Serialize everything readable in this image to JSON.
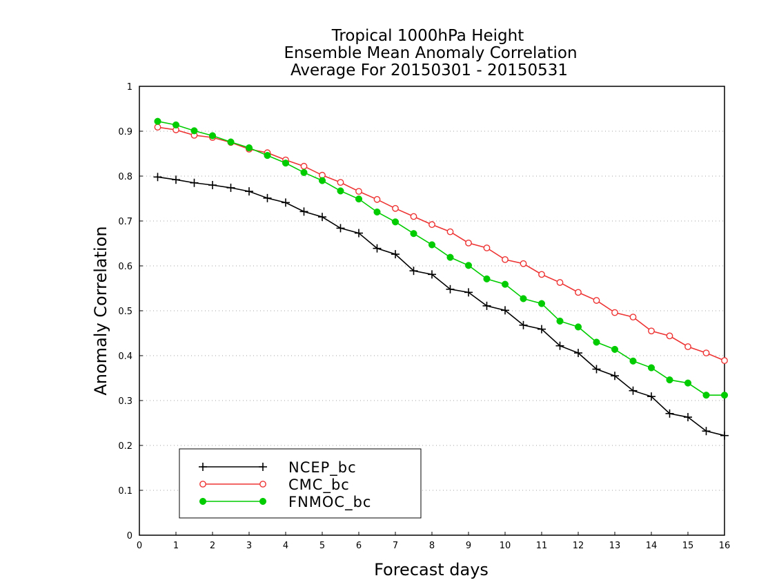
{
  "chart_data": {
    "type": "line",
    "title_lines": [
      "Tropical 1000hPa Height",
      "Ensemble Mean Anomaly Correlation",
      "Average For 20150301 - 20150531"
    ],
    "xlabel": "Forecast days",
    "ylabel": "Anomaly Correlation",
    "xlim": [
      0,
      16
    ],
    "ylim": [
      0,
      1
    ],
    "xticks": [
      0,
      1,
      2,
      3,
      4,
      5,
      6,
      7,
      8,
      9,
      10,
      11,
      12,
      13,
      14,
      15,
      16
    ],
    "xtick_labels": [
      "0",
      "1",
      "2",
      "3",
      "4",
      "5",
      "6",
      "7",
      "8",
      "9",
      "10",
      "11",
      "12",
      "13",
      "14",
      "15",
      "16"
    ],
    "yticks": [
      0,
      0.1,
      0.2,
      0.3,
      0.4,
      0.5,
      0.6,
      0.7,
      0.8,
      0.9,
      1
    ],
    "ytick_labels": [
      "0",
      "0.1",
      "0.2",
      "0.3",
      "0.4",
      "0.5",
      "0.6",
      "0.7",
      "0.8",
      "0.9",
      "1"
    ],
    "grid": "horizontal-dotted",
    "legend_position": "bottom-left",
    "x": [
      0.5,
      1,
      1.5,
      2,
      2.5,
      3,
      3.5,
      4,
      4.5,
      5,
      5.5,
      6,
      6.5,
      7,
      7.5,
      8,
      8.5,
      9,
      9.5,
      10,
      10.5,
      11,
      11.5,
      12,
      12.5,
      13,
      13.5,
      14,
      14.5,
      15,
      15.5,
      16
    ],
    "series": [
      {
        "name": "NCEP_bc",
        "color": "#000000",
        "marker": "plus",
        "values": [
          0.798,
          0.792,
          0.785,
          0.78,
          0.774,
          0.766,
          0.751,
          0.741,
          0.721,
          0.709,
          0.684,
          0.673,
          0.639,
          0.626,
          0.589,
          0.581,
          0.548,
          0.541,
          0.511,
          0.501,
          0.468,
          0.459,
          0.422,
          0.406,
          0.37,
          0.355,
          0.322,
          0.309,
          0.271,
          0.263,
          0.232,
          0.222
        ]
      },
      {
        "name": "CMC_bc",
        "color": "#ee3333",
        "marker": "open-circle",
        "values": [
          0.909,
          0.903,
          0.891,
          0.886,
          0.875,
          0.86,
          0.852,
          0.836,
          0.822,
          0.802,
          0.786,
          0.766,
          0.748,
          0.728,
          0.71,
          0.692,
          0.676,
          0.651,
          0.64,
          0.614,
          0.605,
          0.581,
          0.563,
          0.541,
          0.523,
          0.496,
          0.486,
          0.455,
          0.444,
          0.42,
          0.406,
          0.389
        ]
      },
      {
        "name": "FNMOC_bc",
        "color": "#00cc00",
        "marker": "filled-circle",
        "values": [
          0.922,
          0.914,
          0.901,
          0.89,
          0.876,
          0.863,
          0.846,
          0.829,
          0.808,
          0.79,
          0.767,
          0.749,
          0.72,
          0.698,
          0.672,
          0.647,
          0.619,
          0.601,
          0.571,
          0.559,
          0.527,
          0.516,
          0.477,
          0.464,
          0.43,
          0.414,
          0.388,
          0.373,
          0.346,
          0.339,
          0.312,
          0.312
        ]
      }
    ]
  }
}
